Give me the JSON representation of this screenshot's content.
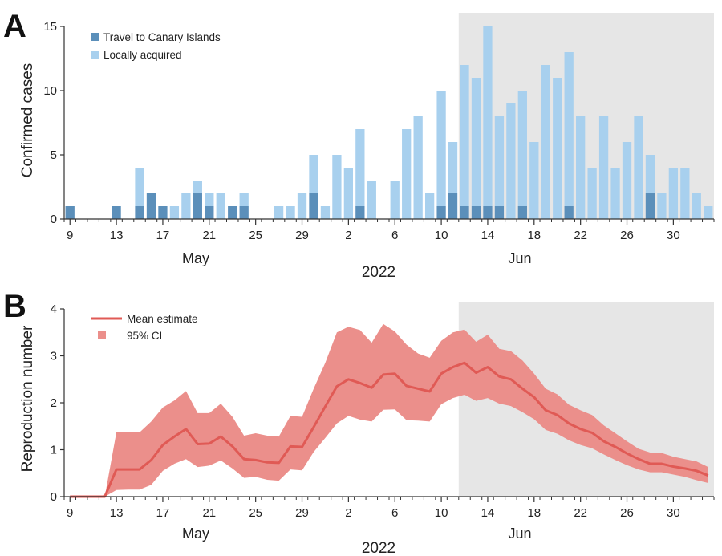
{
  "colors": {
    "travel": "#5b8fba",
    "local": "#a8d0ee",
    "mean_line": "#e05a55",
    "ci_band": "#eb8f8b",
    "shade": "#e6e6e6",
    "axis": "#333333"
  },
  "chart_data": [
    {
      "panel": "A",
      "type": "bar",
      "stacked": true,
      "ylabel": "Confirmed cases",
      "xlabel": "2022",
      "ylim": [
        0,
        15
      ],
      "yticks": [
        0,
        5,
        10,
        15
      ],
      "xticks": [
        "9",
        "13",
        "17",
        "21",
        "25",
        "29",
        "2",
        "6",
        "10",
        "14",
        "18",
        "22",
        "26",
        "30"
      ],
      "month_labels": [
        "May",
        "Jun"
      ],
      "year_label": "2022",
      "shaded_from": "2022-06-12",
      "legend_position": "top-left",
      "dates": [
        "2022-05-09",
        "2022-05-10",
        "2022-05-11",
        "2022-05-12",
        "2022-05-13",
        "2022-05-14",
        "2022-05-15",
        "2022-05-16",
        "2022-05-17",
        "2022-05-18",
        "2022-05-19",
        "2022-05-20",
        "2022-05-21",
        "2022-05-22",
        "2022-05-23",
        "2022-05-24",
        "2022-05-25",
        "2022-05-26",
        "2022-05-27",
        "2022-05-28",
        "2022-05-29",
        "2022-05-30",
        "2022-05-31",
        "2022-06-01",
        "2022-06-02",
        "2022-06-03",
        "2022-06-04",
        "2022-06-05",
        "2022-06-06",
        "2022-06-07",
        "2022-06-08",
        "2022-06-09",
        "2022-06-10",
        "2022-06-11",
        "2022-06-12",
        "2022-06-13",
        "2022-06-14",
        "2022-06-15",
        "2022-06-16",
        "2022-06-17",
        "2022-06-18",
        "2022-06-19",
        "2022-06-20",
        "2022-06-21",
        "2022-06-22",
        "2022-06-23",
        "2022-06-24",
        "2022-06-25",
        "2022-06-26",
        "2022-06-27",
        "2022-06-28",
        "2022-06-29",
        "2022-06-30",
        "2022-07-01",
        "2022-07-02",
        "2022-07-03"
      ],
      "series": [
        {
          "name": "Travel to Canary Islands",
          "values": [
            1,
            0,
            0,
            0,
            1,
            0,
            1,
            2,
            1,
            0,
            0,
            2,
            1,
            0,
            1,
            1,
            0,
            0,
            0,
            0,
            0,
            2,
            0,
            0,
            0,
            1,
            0,
            0,
            0,
            0,
            0,
            0,
            1,
            2,
            1,
            1,
            1,
            1,
            0,
            1,
            0,
            0,
            0,
            1,
            0,
            0,
            0,
            0,
            0,
            0,
            2,
            0,
            0,
            0,
            0,
            0
          ]
        },
        {
          "name": "Locally acquired",
          "values": [
            0,
            0,
            0,
            0,
            0,
            0,
            3,
            0,
            0,
            1,
            2,
            1,
            1,
            2,
            0,
            1,
            0,
            0,
            1,
            1,
            2,
            3,
            1,
            5,
            4,
            6,
            3,
            0,
            3,
            7,
            8,
            2,
            9,
            4,
            11,
            10,
            14,
            7,
            9,
            9,
            6,
            12,
            11,
            12,
            8,
            4,
            8,
            4,
            6,
            8,
            3,
            2,
            4,
            4,
            2,
            1
          ]
        }
      ]
    },
    {
      "panel": "B",
      "type": "line",
      "ylabel": "Reproduction number",
      "xlabel": "2022",
      "ylim": [
        0,
        4
      ],
      "yticks": [
        0,
        1,
        2,
        3,
        4
      ],
      "xticks": [
        "9",
        "13",
        "17",
        "21",
        "25",
        "29",
        "2",
        "6",
        "10",
        "14",
        "18",
        "22",
        "26",
        "30"
      ],
      "month_labels": [
        "May",
        "Jun"
      ],
      "year_label": "2022",
      "shaded_from": "2022-06-12",
      "legend_position": "top-left",
      "dates": [
        "2022-05-09",
        "2022-05-10",
        "2022-05-11",
        "2022-05-12",
        "2022-05-13",
        "2022-05-14",
        "2022-05-15",
        "2022-05-16",
        "2022-05-17",
        "2022-05-18",
        "2022-05-19",
        "2022-05-20",
        "2022-05-21",
        "2022-05-22",
        "2022-05-23",
        "2022-05-24",
        "2022-05-25",
        "2022-05-26",
        "2022-05-27",
        "2022-05-28",
        "2022-05-29",
        "2022-05-30",
        "2022-05-31",
        "2022-06-01",
        "2022-06-02",
        "2022-06-03",
        "2022-06-04",
        "2022-06-05",
        "2022-06-06",
        "2022-06-07",
        "2022-06-08",
        "2022-06-09",
        "2022-06-10",
        "2022-06-11",
        "2022-06-12",
        "2022-06-13",
        "2022-06-14",
        "2022-06-15",
        "2022-06-16",
        "2022-06-17",
        "2022-06-18",
        "2022-06-19",
        "2022-06-20",
        "2022-06-21",
        "2022-06-22",
        "2022-06-23",
        "2022-06-24",
        "2022-06-25",
        "2022-06-26",
        "2022-06-27",
        "2022-06-28",
        "2022-06-29",
        "2022-06-30",
        "2022-07-01",
        "2022-07-02",
        "2022-07-03"
      ],
      "series": [
        {
          "name": "Mean estimate",
          "values": [
            0,
            0,
            0,
            0,
            0.58,
            0.58,
            0.58,
            0.78,
            1.1,
            1.28,
            1.44,
            1.12,
            1.13,
            1.28,
            1.07,
            0.8,
            0.78,
            0.73,
            0.72,
            1.07,
            1.06,
            1.48,
            1.92,
            2.35,
            2.5,
            2.42,
            2.32,
            2.6,
            2.62,
            2.36,
            2.3,
            2.24,
            2.62,
            2.76,
            2.85,
            2.64,
            2.76,
            2.56,
            2.5,
            2.3,
            2.12,
            1.84,
            1.74,
            1.56,
            1.44,
            1.36,
            1.18,
            1.06,
            0.92,
            0.8,
            0.7,
            0.7,
            0.64,
            0.6,
            0.55,
            0.45
          ]
        },
        {
          "name": "95% CI",
          "lower": [
            0,
            0,
            0,
            0,
            0.14,
            0.15,
            0.15,
            0.25,
            0.55,
            0.7,
            0.8,
            0.63,
            0.66,
            0.77,
            0.6,
            0.4,
            0.42,
            0.36,
            0.34,
            0.58,
            0.56,
            0.95,
            1.25,
            1.56,
            1.72,
            1.64,
            1.6,
            1.85,
            1.86,
            1.63,
            1.62,
            1.6,
            1.97,
            2.1,
            2.17,
            2.04,
            2.1,
            1.98,
            1.93,
            1.8,
            1.65,
            1.42,
            1.34,
            1.2,
            1.1,
            1.03,
            0.9,
            0.78,
            0.67,
            0.58,
            0.52,
            0.52,
            0.47,
            0.42,
            0.35,
            0.29
          ],
          "upper": [
            0,
            0,
            0,
            0,
            1.37,
            1.37,
            1.37,
            1.6,
            1.9,
            2.05,
            2.25,
            1.78,
            1.78,
            1.98,
            1.7,
            1.3,
            1.35,
            1.3,
            1.28,
            1.72,
            1.7,
            2.3,
            2.85,
            3.5,
            3.62,
            3.55,
            3.28,
            3.68,
            3.52,
            3.24,
            3.05,
            2.96,
            3.32,
            3.5,
            3.56,
            3.3,
            3.45,
            3.15,
            3.1,
            2.9,
            2.62,
            2.3,
            2.18,
            1.96,
            1.84,
            1.74,
            1.52,
            1.35,
            1.18,
            1.02,
            0.94,
            0.93,
            0.85,
            0.8,
            0.75,
            0.63
          ]
        }
      ]
    }
  ]
}
